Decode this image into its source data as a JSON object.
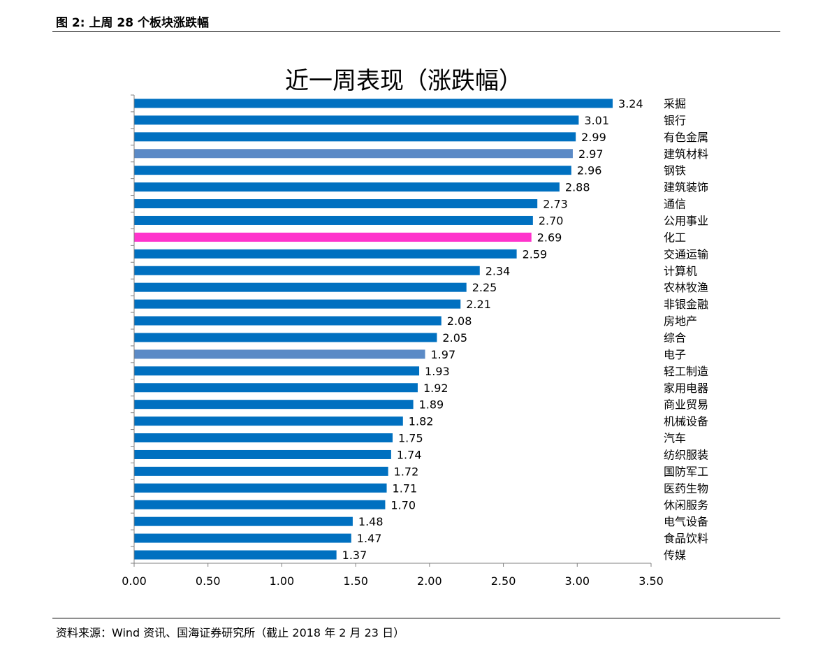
{
  "header": {
    "figure_title": "图 2:  上周 28 个板块涨跌幅"
  },
  "footer": {
    "source": "资料来源：Wind 资讯、国海证券研究所（截止 2018 年 2 月 23 日）"
  },
  "chart_data": {
    "type": "bar",
    "orientation": "horizontal",
    "title": "近一周表现（涨跌幅）",
    "xlabel": "",
    "ylabel": "",
    "xlim": [
      0,
      3.5
    ],
    "xticks": [
      "0.00",
      "0.50",
      "1.00",
      "1.50",
      "2.00",
      "2.50",
      "3.00",
      "3.50"
    ],
    "grid": false,
    "legend": "none",
    "colors": {
      "default": "#0070C0",
      "highlight_light": "#5B8AC6",
      "highlight_pink": "#FF33CC"
    },
    "categories": [
      "采掘",
      "银行",
      "有色金属",
      "建筑材料",
      "钢铁",
      "建筑装饰",
      "通信",
      "公用事业",
      "化工",
      "交通运输",
      "计算机",
      "农林牧渔",
      "非银金融",
      "房地产",
      "综合",
      "电子",
      "轻工制造",
      "家用电器",
      "商业贸易",
      "机械设备",
      "汽车",
      "纺织服装",
      "国防军工",
      "医药生物",
      "休闲服务",
      "电气设备",
      "食品饮料",
      "传媒"
    ],
    "values": [
      3.24,
      3.01,
      2.99,
      2.97,
      2.96,
      2.88,
      2.73,
      2.7,
      2.69,
      2.59,
      2.34,
      2.25,
      2.21,
      2.08,
      2.05,
      1.97,
      1.93,
      1.92,
      1.89,
      1.82,
      1.75,
      1.74,
      1.72,
      1.71,
      1.7,
      1.48,
      1.47,
      1.37
    ],
    "value_labels": [
      "3.24",
      "3.01",
      "2.99",
      "2.97",
      "2.96",
      "2.88",
      "2.73",
      "2.70",
      "2.69",
      "2.59",
      "2.34",
      "2.25",
      "2.21",
      "2.08",
      "2.05",
      "1.97",
      "1.93",
      "1.92",
      "1.89",
      "1.82",
      "1.75",
      "1.74",
      "1.72",
      "1.71",
      "1.70",
      "1.48",
      "1.47",
      "1.37"
    ],
    "bar_colors": [
      "#0070C0",
      "#0070C0",
      "#0070C0",
      "#5B8AC6",
      "#0070C0",
      "#0070C0",
      "#0070C0",
      "#0070C0",
      "#FF33CC",
      "#0070C0",
      "#0070C0",
      "#0070C0",
      "#0070C0",
      "#0070C0",
      "#0070C0",
      "#5B8AC6",
      "#0070C0",
      "#0070C0",
      "#0070C0",
      "#0070C0",
      "#0070C0",
      "#0070C0",
      "#0070C0",
      "#0070C0",
      "#0070C0",
      "#0070C0",
      "#0070C0",
      "#0070C0"
    ]
  }
}
